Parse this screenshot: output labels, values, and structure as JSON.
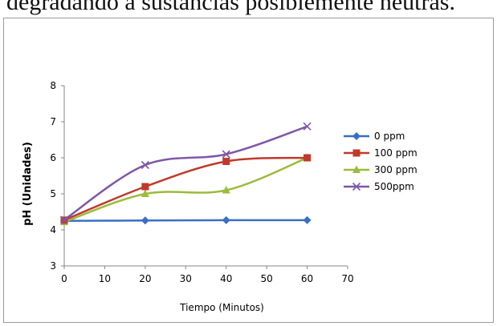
{
  "caption": "degradando a sustancias posiblemente neutras.",
  "chart_data": {
    "type": "line",
    "title": "",
    "xlabel": "Tiempo (Minutos)",
    "ylabel": "pH (Unidades)",
    "xlim": [
      0,
      70
    ],
    "ylim": [
      3,
      8
    ],
    "x_ticks": [
      0,
      10,
      20,
      30,
      40,
      50,
      60,
      70
    ],
    "y_ticks": [
      3,
      4,
      5,
      6,
      7,
      8
    ],
    "grid": false,
    "legend_position": "right",
    "x": [
      0,
      20,
      40,
      60
    ],
    "series": [
      {
        "name": "0 ppm",
        "values": [
          4.25,
          4.26,
          4.27,
          4.27
        ],
        "color": "#3a6fc4",
        "marker": "diamond"
      },
      {
        "name": "100 ppm",
        "values": [
          4.27,
          5.2,
          5.9,
          6.0
        ],
        "color": "#c0392b",
        "marker": "square"
      },
      {
        "name": "300 ppm",
        "values": [
          4.22,
          5.0,
          5.1,
          6.0
        ],
        "color": "#9bbb3b",
        "marker": "triangle"
      },
      {
        "name": "500ppm",
        "values": [
          4.28,
          5.8,
          6.1,
          6.87
        ],
        "color": "#7e57a8",
        "marker": "x"
      }
    ]
  }
}
